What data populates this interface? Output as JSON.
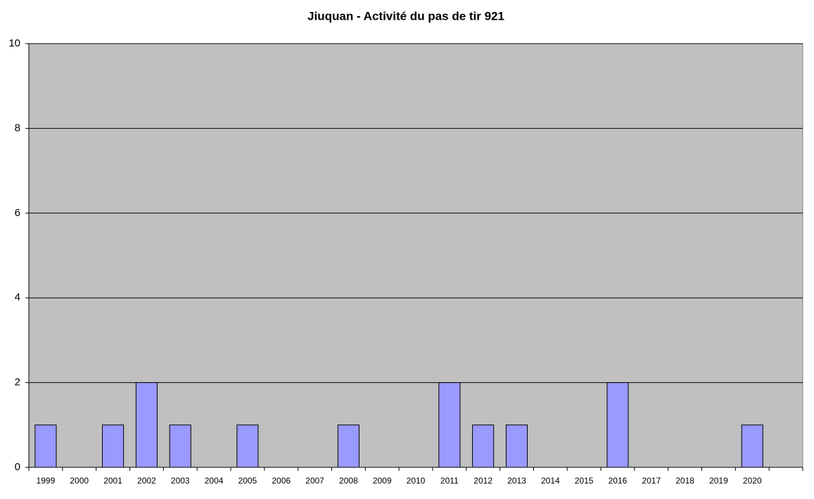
{
  "chart_data": {
    "type": "bar",
    "title": "Jiuquan - Activité du pas de tir 921",
    "categories": [
      "1999",
      "2000",
      "2001",
      "2002",
      "2003",
      "2004",
      "2005",
      "2006",
      "2007",
      "2008",
      "2009",
      "2010",
      "2011",
      "2012",
      "2013",
      "2014",
      "2015",
      "2016",
      "2017",
      "2018",
      "2019",
      "2020",
      null
    ],
    "values": [
      1,
      0,
      1,
      2,
      1,
      0,
      1,
      0,
      0,
      1,
      0,
      0,
      2,
      1,
      1,
      0,
      0,
      2,
      0,
      0,
      0,
      1,
      null
    ],
    "color": "#9999ff",
    "background": "#c0c0c0",
    "ylim": [
      0,
      10
    ],
    "yticks": [
      0,
      2,
      4,
      6,
      8,
      10
    ],
    "grid": true
  }
}
